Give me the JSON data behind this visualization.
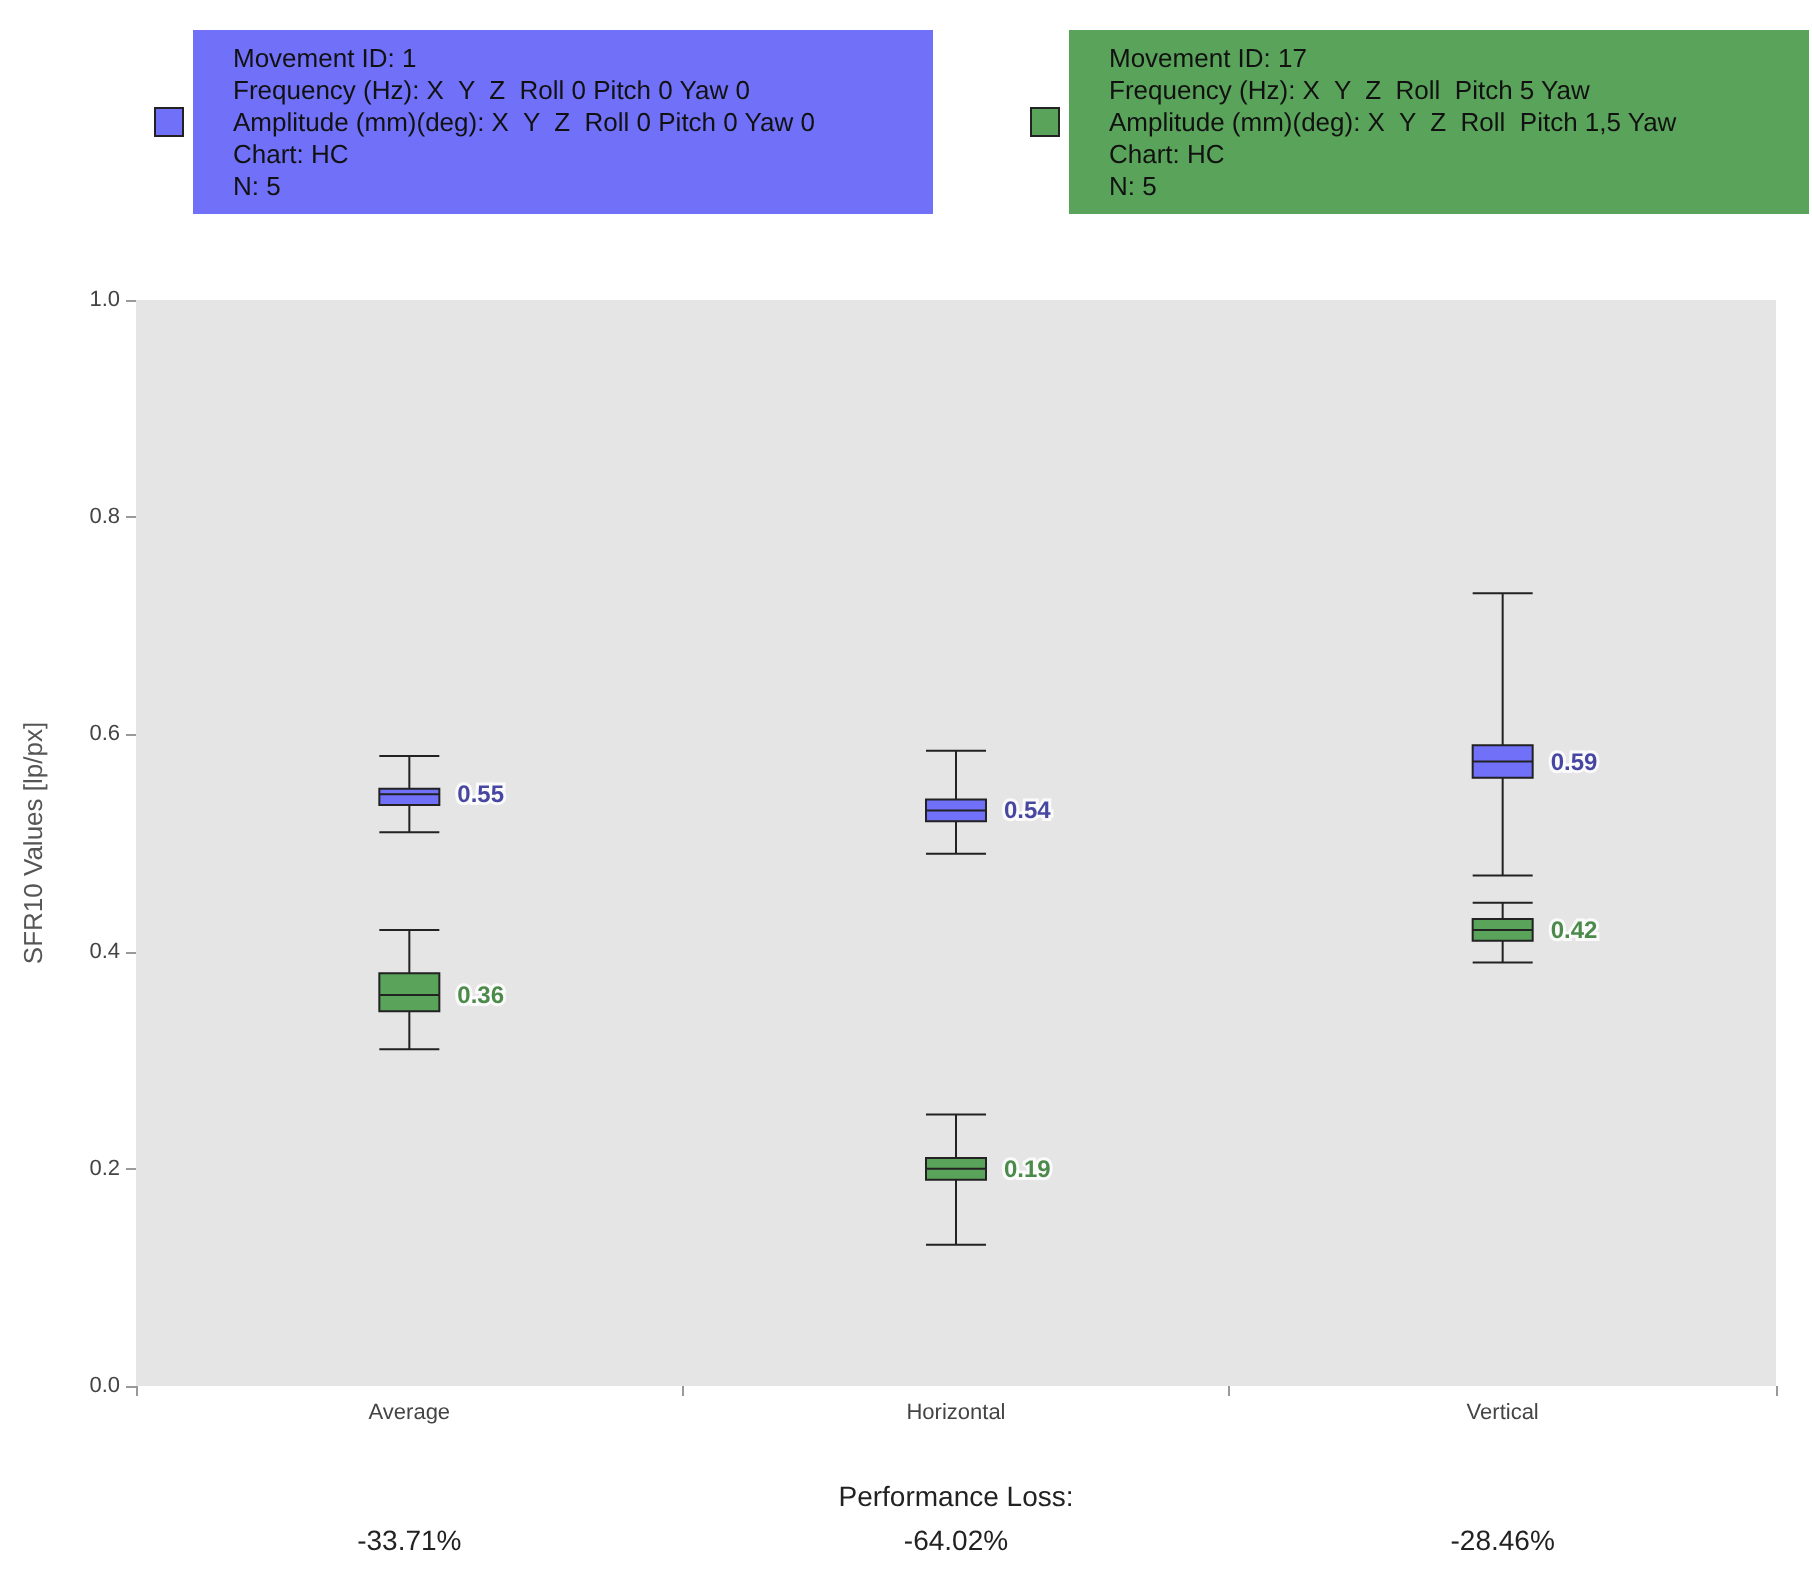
{
  "chart_data": {
    "type": "box",
    "ylabel": "SFR10 Values [lp/px]",
    "xlabel": "Performance Loss:",
    "categories": [
      "Average",
      "Horizontal",
      "Vertical"
    ],
    "ylim": [
      0,
      1
    ],
    "yticks": [
      {
        "value": 0,
        "label": "0.0"
      },
      0.2,
      0.4,
      0.6,
      0.8,
      {
        "value": 1,
        "label": "1.0"
      }
    ],
    "grid": false,
    "legend": "top",
    "series": [
      {
        "name": "Movement ID: 1\nFrequency (Hz): X  Y  Z  Roll 0 Pitch 0 Yaw 0\nAmplitude (mm)(deg): X  Y  Z  Roll 0 Pitch 0 Yaw 0\nChart: HC\nN: 5",
        "color": "#7070f8",
        "value_labels": [
          "0.55",
          "0.54",
          "0.59"
        ],
        "boxes": [
          {
            "low": 0.51,
            "q1": 0.535,
            "median": 0.545,
            "q3": 0.55,
            "high": 0.58
          },
          {
            "low": 0.49,
            "q1": 0.52,
            "median": 0.53,
            "q3": 0.54,
            "high": 0.585
          },
          {
            "low": 0.47,
            "q1": 0.56,
            "median": 0.575,
            "q3": 0.59,
            "high": 0.73
          }
        ]
      },
      {
        "name": "Movement ID: 17\nFrequency (Hz): X  Y  Z  Roll  Pitch 5 Yaw\nAmplitude (mm)(deg): X  Y  Z  Roll  Pitch 1,5 Yaw\nChart: HC\nN: 5",
        "color": "#5aa35a",
        "value_labels": [
          "0.36",
          "0.19",
          "0.42"
        ],
        "boxes": [
          {
            "low": 0.31,
            "q1": 0.345,
            "median": 0.36,
            "q3": 0.38,
            "high": 0.42
          },
          {
            "low": 0.13,
            "q1": 0.19,
            "median": 0.2,
            "q3": 0.21,
            "high": 0.25
          },
          {
            "low": 0.39,
            "q1": 0.41,
            "median": 0.42,
            "q3": 0.43,
            "high": 0.445
          }
        ]
      }
    ],
    "annotations": [
      "-33.71%",
      "-64.02%",
      "-28.46%"
    ]
  }
}
